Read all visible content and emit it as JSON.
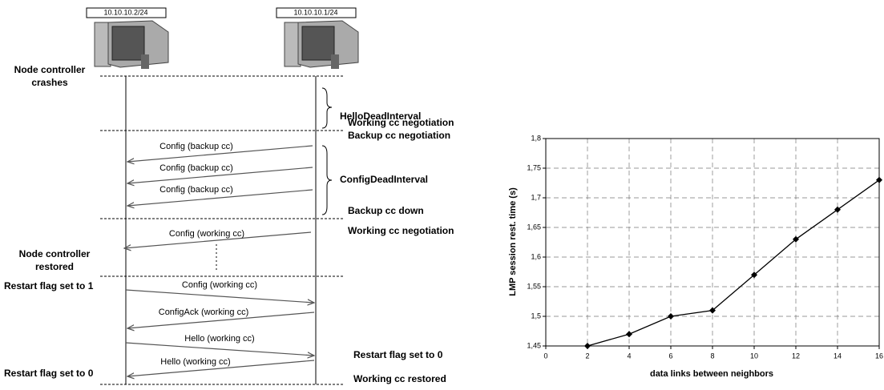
{
  "diagram": {
    "hosts": [
      "10.10.10.2/24",
      "10.10.10.1/24"
    ],
    "left_labels": [
      "Node controller",
      "crashes",
      "Node controller",
      "restored",
      "Restart flag set to 1",
      "Restart flag set to 0"
    ],
    "right_labels": [
      "HelloDeadInterval",
      "Working cc negotiation",
      "Backup cc negotiation",
      "ConfigDeadInterval",
      "Backup cc down",
      "Working cc negotiation",
      "Restart flag set to 0",
      "Working cc restored"
    ],
    "messages": [
      "Config (backup cc)",
      "Config (backup cc)",
      "Config (backup cc)",
      "Config (working cc)",
      "Config (working cc)",
      "ConfigAck (working cc)",
      "Hello (working cc)",
      "Hello (working cc)"
    ]
  },
  "chart_data": {
    "type": "line",
    "x_label": "data links between neighbors",
    "y_label": "LMP session rest. time (s)",
    "x": [
      2,
      4,
      6,
      8,
      10,
      12,
      14,
      16
    ],
    "values": [
      1.45,
      1.47,
      1.5,
      1.51,
      1.57,
      1.63,
      1.68,
      1.73
    ],
    "color": "#000000",
    "xlim": [
      0,
      16
    ],
    "xticks": [
      0,
      2,
      4,
      6,
      8,
      10,
      12,
      14,
      16
    ],
    "ylim": [
      1.45,
      1.8
    ],
    "yticks": [
      {
        "value": 1.45,
        "label": "1,45"
      },
      {
        "value": 1.5,
        "label": "1,5"
      },
      {
        "value": 1.55,
        "label": "1,55"
      },
      {
        "value": 1.6,
        "label": "1,6"
      },
      {
        "value": 1.65,
        "label": "1,65"
      },
      {
        "value": 1.7,
        "label": "1,7"
      },
      {
        "value": 1.75,
        "label": "1,75"
      },
      {
        "value": 1.8,
        "label": "1,8"
      }
    ],
    "grid": true
  }
}
